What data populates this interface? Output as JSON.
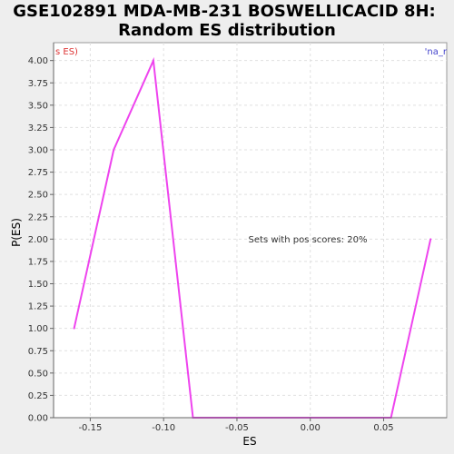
{
  "colors": {
    "background": "#eeeeee",
    "plot_background": "#ffffff",
    "grid": "#e0e0e0",
    "series": "#ee44ee",
    "left_corner": "#dd3333",
    "right_corner": "#4444cc"
  },
  "chart_data": {
    "type": "line",
    "title": [
      "GSE102891 MDA-MB-231 BOSWELLICACID 8H:",
      "Random ES distribution"
    ],
    "xlabel": "ES",
    "ylabel": "P(ES)",
    "xlim": [
      -0.175,
      0.093
    ],
    "ylim": [
      0,
      4.2
    ],
    "grid": true,
    "x_ticks": [
      -0.15,
      -0.1,
      -0.05,
      0.0,
      0.05
    ],
    "x_tick_labels": [
      "-0.15",
      "-0.10",
      "-0.05",
      "0.00",
      "0.05"
    ],
    "y_ticks": [
      0,
      0.25,
      0.5,
      0.75,
      1.0,
      1.25,
      1.5,
      1.75,
      2.0,
      2.25,
      2.5,
      2.75,
      3.0,
      3.25,
      3.5,
      3.75,
      4.0
    ],
    "y_tick_labels": [
      "0.00",
      "0.25",
      "0.50",
      "0.75",
      "1.00",
      "1.25",
      "1.50",
      "1.75",
      "2.00",
      "2.25",
      "2.50",
      "2.75",
      "3.00",
      "3.25",
      "3.50",
      "3.75",
      "4.00"
    ],
    "series": [
      {
        "x": [
          -0.161,
          -0.134,
          -0.107,
          -0.08,
          -0.026,
          0.028,
          0.055,
          0.082
        ],
        "y": [
          1.0,
          3.0,
          4.0,
          0.0,
          0.0,
          0.0,
          0.0,
          2.0
        ]
      }
    ],
    "annotation": "Sets with pos scores: 20%",
    "corner_left": "s ES)",
    "corner_right": "'na_r"
  }
}
